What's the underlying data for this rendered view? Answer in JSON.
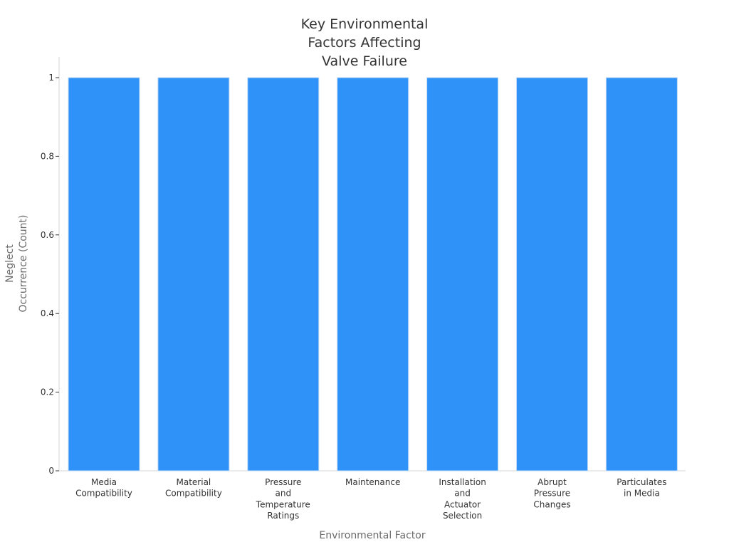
{
  "chart_data": {
    "type": "bar",
    "title_lines": [
      "Key Environmental",
      "Factors Affecting",
      "Valve Failure"
    ],
    "xlabel": "Environmental Factor",
    "ylabel_lines": [
      "Neglect",
      "Occurrence (Count)"
    ],
    "categories": [
      [
        "Media",
        "Compatibility"
      ],
      [
        "Material",
        "Compatibility"
      ],
      [
        "Pressure",
        "and",
        "Temperature",
        "Ratings"
      ],
      [
        "Maintenance"
      ],
      [
        "Installation",
        "and",
        "Actuator",
        "Selection"
      ],
      [
        "Abrupt",
        "Pressure",
        "Changes"
      ],
      [
        "Particulates",
        "in Media"
      ]
    ],
    "values": [
      1,
      1,
      1,
      1,
      1,
      1,
      1
    ],
    "ylim": [
      0,
      1
    ],
    "yticks": [
      0,
      0.2,
      0.4,
      0.6,
      0.8,
      1
    ],
    "ytick_labels": [
      "0",
      "0.2",
      "0.4",
      "0.6",
      "0.8",
      "1"
    ],
    "bar_color": "#2f92f8",
    "grid": false,
    "legend": "none"
  }
}
